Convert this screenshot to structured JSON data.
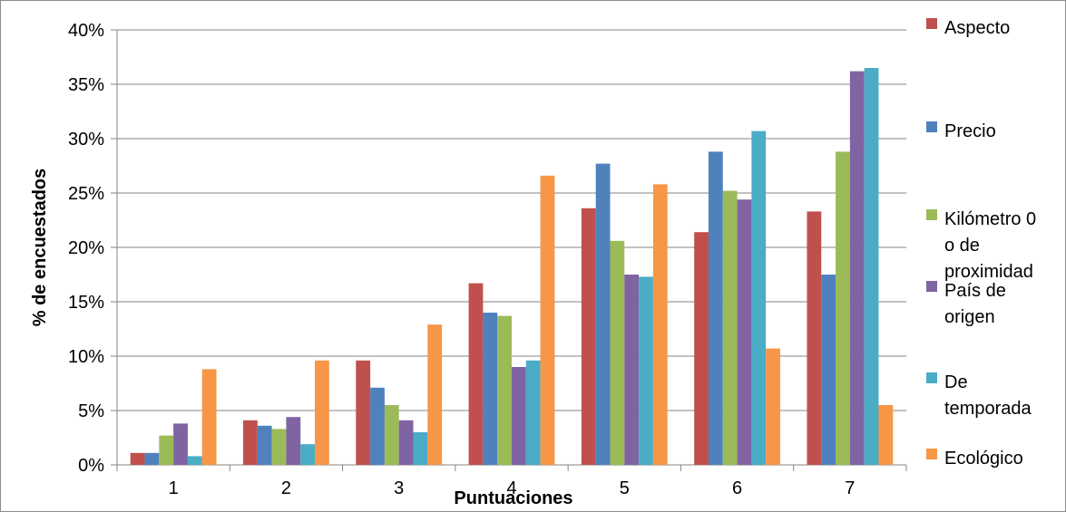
{
  "chart_data": {
    "type": "bar",
    "xlabel": "Puntuaciones",
    "ylabel": "% de encuestados",
    "categories": [
      "1",
      "2",
      "3",
      "4",
      "5",
      "6",
      "7"
    ],
    "ylim": [
      0,
      40
    ],
    "yticks": [
      "0%",
      "5%",
      "10%",
      "15%",
      "20%",
      "25%",
      "30%",
      "35%",
      "40%"
    ],
    "grid": true,
    "legend_position": "right",
    "series": [
      {
        "name": "Aspecto",
        "name_lines": [
          "Aspecto"
        ],
        "color": "#c0504d",
        "values": [
          1.1,
          4.1,
          9.6,
          16.7,
          23.6,
          21.4,
          23.3
        ]
      },
      {
        "name": "Precio",
        "name_lines": [
          "Precio"
        ],
        "color": "#4f81bd",
        "values": [
          1.1,
          3.6,
          7.1,
          14.0,
          27.7,
          28.8,
          17.5
        ]
      },
      {
        "name": "Kilómetro 0 o de proximidad",
        "name_lines": [
          "Kilómetro 0",
          "o de",
          "proximidad"
        ],
        "color": "#9bbb59",
        "values": [
          2.7,
          3.3,
          5.5,
          13.7,
          20.6,
          25.2,
          28.8
        ]
      },
      {
        "name": "País de origen",
        "name_lines": [
          "País de",
          "origen"
        ],
        "color": "#8064a2",
        "values": [
          3.8,
          4.4,
          4.1,
          9.0,
          17.5,
          24.4,
          36.2
        ]
      },
      {
        "name": "De temporada",
        "name_lines": [
          "De",
          "temporada"
        ],
        "color": "#4bacc6",
        "values": [
          0.8,
          1.9,
          3.0,
          9.6,
          17.3,
          30.7,
          36.5
        ]
      },
      {
        "name": "Ecológico",
        "name_lines": [
          "Ecológico"
        ],
        "color": "#f79646",
        "values": [
          8.8,
          9.6,
          12.9,
          26.6,
          25.8,
          10.7,
          5.5
        ]
      }
    ]
  }
}
